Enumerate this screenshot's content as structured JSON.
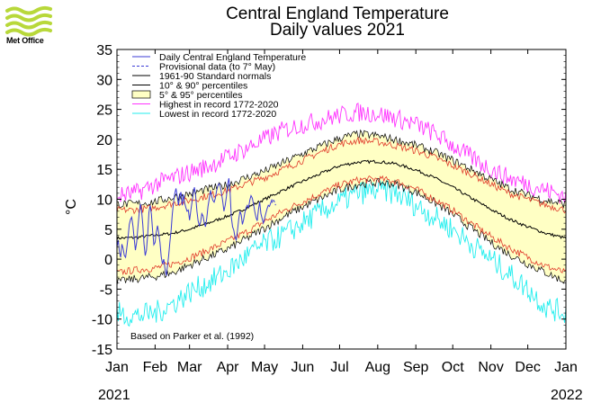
{
  "header": {
    "logo_text": "Met Office",
    "title_line1": "Central England Temperature",
    "title_line2": "Daily values 2021"
  },
  "footer": {
    "year_start": "2021",
    "year_end": "2022"
  },
  "colors": {
    "daily": "#3b3bd6",
    "provisional": "#3b3bd6",
    "normal": "#000000",
    "p10_90": "#000000",
    "p5_95_line": "#e03a2a",
    "p5_95_fill": "#ffffc4",
    "highest": "#ff33ff",
    "lowest": "#22eeee",
    "logo": "#b8d83a"
  },
  "chart_data": {
    "type": "line",
    "title": "Central England Temperature Daily values 2021",
    "ylabel": "°C",
    "ylim": [
      -15,
      35
    ],
    "yticks": [
      35,
      30,
      25,
      20,
      15,
      10,
      5,
      0,
      -5,
      -10,
      -15
    ],
    "xlim": [
      0,
      365
    ],
    "month_labels": [
      "Jan",
      "Feb",
      "Mar",
      "Apr",
      "May",
      "Jun",
      "Jul",
      "Aug",
      "Sep",
      "Oct",
      "Nov",
      "Dec",
      "Jan"
    ],
    "month_start_days": [
      0,
      31,
      59,
      90,
      120,
      151,
      181,
      212,
      243,
      273,
      304,
      334,
      365
    ],
    "legend": [
      {
        "label": "Daily Central England Temperature",
        "style": "line",
        "color_key": "daily"
      },
      {
        "label": "Provisional data (to 7° May)",
        "style": "dash",
        "color_key": "provisional"
      },
      {
        "label": "1961-90 Standard normals",
        "style": "line",
        "color_key": "normal"
      },
      {
        "label": "10° & 90° percentiles",
        "style": "line",
        "color_key": "p10_90"
      },
      {
        "label": "5° & 95° percentiles",
        "style": "box",
        "color_key": "p5_95_fill"
      },
      {
        "label": "Highest in record 1772-2020",
        "style": "line",
        "color_key": "highest"
      },
      {
        "label": "Lowest in record 1772-2020",
        "style": "line",
        "color_key": "lowest"
      }
    ],
    "legend_position": "top-left",
    "annotation": "Based on Parker et al. (1992)",
    "climatology_nodes": {
      "day": [
        0,
        15,
        31,
        45,
        59,
        74,
        90,
        105,
        120,
        135,
        151,
        166,
        181,
        196,
        212,
        227,
        243,
        258,
        273,
        288,
        304,
        319,
        334,
        349,
        365
      ],
      "normal": [
        3.5,
        3.6,
        4.0,
        4.3,
        5.0,
        6.0,
        7.2,
        8.5,
        10.0,
        11.5,
        13.0,
        14.3,
        15.6,
        16.2,
        16.3,
        15.9,
        14.9,
        13.6,
        12.0,
        10.2,
        8.3,
        6.7,
        5.4,
        4.3,
        3.5
      ],
      "p10": [
        -2.3,
        -1.8,
        -1.5,
        -0.8,
        0.2,
        1.5,
        3.0,
        4.5,
        6.3,
        8.0,
        9.6,
        11.0,
        12.4,
        13.2,
        13.4,
        13.0,
        11.7,
        10.0,
        8.2,
        6.0,
        3.8,
        1.9,
        0.3,
        -1.2,
        -2.3
      ],
      "p90": [
        8.2,
        8.2,
        8.6,
        9.3,
        9.8,
        10.6,
        11.4,
        12.6,
        13.6,
        15.0,
        16.5,
        17.9,
        19.2,
        19.8,
        19.6,
        18.9,
        18.1,
        17.0,
        15.6,
        14.2,
        12.5,
        11.0,
        10.0,
        9.0,
        8.2
      ],
      "p5": [
        -3.8,
        -3.3,
        -2.9,
        -2.3,
        -1.0,
        0.3,
        1.7,
        3.4,
        5.2,
        7.0,
        8.7,
        10.2,
        11.6,
        12.5,
        12.8,
        12.5,
        11.2,
        9.5,
        7.5,
        5.2,
        2.8,
        0.8,
        -0.8,
        -2.3,
        -3.8
      ],
      "p95": [
        9.2,
        9.2,
        9.6,
        10.3,
        10.9,
        11.7,
        12.4,
        13.6,
        14.7,
        16.1,
        17.6,
        18.9,
        20.2,
        20.9,
        20.6,
        19.9,
        19.0,
        17.9,
        16.5,
        15.0,
        13.3,
        11.8,
        10.7,
        9.8,
        9.2
      ],
      "highest": [
        10.5,
        11.0,
        12.5,
        13.5,
        14.5,
        15.5,
        17.0,
        18.5,
        20.0,
        21.5,
        22.5,
        23.2,
        24.0,
        24.5,
        24.3,
        23.5,
        22.5,
        21.0,
        19.0,
        17.0,
        15.0,
        13.5,
        12.5,
        11.5,
        10.5
      ],
      "lowest": [
        -9.0,
        -9.5,
        -9.0,
        -7.5,
        -5.5,
        -4.0,
        -2.0,
        0.5,
        2.5,
        4.0,
        6.0,
        8.0,
        9.5,
        11.0,
        11.5,
        11.0,
        9.0,
        7.0,
        5.0,
        2.5,
        0.0,
        -2.5,
        -5.0,
        -8.0,
        -9.0
      ]
    },
    "series": [
      {
        "name": "Daily Central England Temperature",
        "x_start_day": 0,
        "values": [
          2.0,
          3.2,
          1.2,
          0.3,
          2.5,
          1.8,
          0.6,
          0.3,
          1.8,
          3.6,
          5.8,
          6.6,
          7.0,
          5.5,
          3.5,
          1.5,
          2.8,
          5.2,
          7.5,
          9.2,
          8.2,
          5.8,
          2.5,
          0.6,
          1.5,
          4.2,
          7.8,
          9.0,
          7.5,
          4.8,
          2.4,
          2.8,
          4.5,
          5.6,
          4.3,
          2.8,
          0.4,
          -0.8,
          0.0,
          -1.5,
          -2.8,
          -1.2,
          0.5,
          2.8,
          4.8,
          7.5,
          9.5,
          11.0,
          11.8,
          10.5,
          9.0,
          10.5,
          11.2,
          9.0,
          10.8,
          9.4,
          8.6,
          8.0,
          8.2,
          6.5,
          8.0,
          9.5,
          11.0,
          12.0,
          10.5,
          8.0,
          6.4,
          5.6,
          6.2,
          7.6,
          7.2,
          6.0,
          5.4,
          6.8,
          8.8,
          10.0,
          11.5,
          10.5,
          9.8,
          9.5,
          10.2,
          11.4,
          12.2,
          12.6,
          12.2,
          11.0,
          9.6,
          8.0,
          9.0,
          10.5,
          12.5,
          13.5,
          11.0,
          7.0,
          5.4,
          4.8,
          3.6,
          3.2,
          4.8,
          6.6,
          8.0,
          7.4,
          5.8,
          6.6,
          7.8,
          8.6,
          9.0,
          8.6,
          9.8,
          10.6,
          10.2,
          9.2,
          8.0,
          7.0,
          6.4,
          8.2,
          9.6,
          7.6,
          6.8,
          6.0,
          6.8,
          7.6,
          8.4,
          9.0,
          8.8,
          9.4,
          10.0
        ]
      },
      {
        "name": "Provisional data (to 7° May)",
        "x_start_day": 126,
        "values": [
          9.4,
          10.0,
          9.6,
          9.0
        ]
      }
    ]
  }
}
